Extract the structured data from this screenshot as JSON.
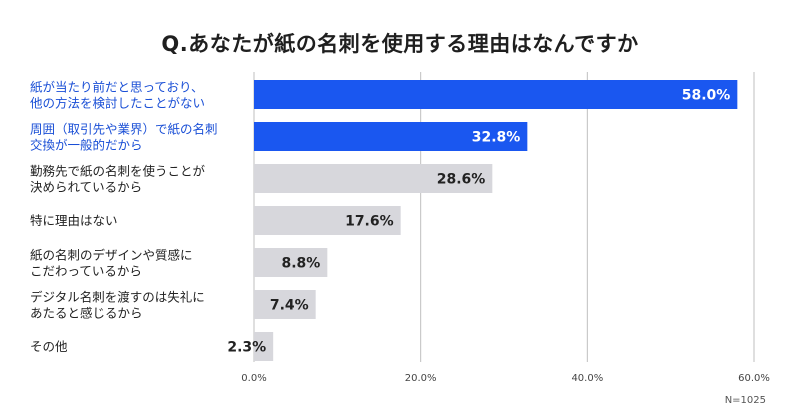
{
  "chart_data": {
    "type": "bar",
    "orientation": "horizontal",
    "title": "Q.あなたが紙の名刺を使用する理由はなんですか",
    "categories": [
      [
        "紙が当たり前だと思っており、",
        "他の方法を検討したことがない"
      ],
      [
        "周囲（取引先や業界）で紙の名刺",
        "交換が一般的だから"
      ],
      [
        "勤務先で紙の名刺を使うことが",
        "決められているから"
      ],
      [
        "特に理由はない"
      ],
      [
        "紙の名刺のデザインや質感に",
        "こだわっているから"
      ],
      [
        "デジタル名刺を渡すのは失礼に",
        "あたると感じるから"
      ],
      [
        "その他"
      ]
    ],
    "values": [
      58.0,
      32.8,
      28.6,
      17.6,
      8.8,
      7.4,
      2.3
    ],
    "value_labels": [
      "58.0%",
      "32.8%",
      "28.6%",
      "17.6%",
      "8.8%",
      "7.4%",
      "2.3%"
    ],
    "highlight": [
      true,
      true,
      false,
      false,
      false,
      false,
      false
    ],
    "xlim": [
      0,
      60
    ],
    "xticks": [
      0,
      20,
      40,
      60
    ],
    "xtick_labels": [
      "0.0%",
      "20.0%",
      "40.0%",
      "60.0%"
    ],
    "grid": true,
    "note": "N=1025",
    "colors": {
      "highlight": "#1a57f0",
      "normal": "#d7d7dc",
      "highlight_text": "#1a4fd6",
      "value_on_highlight": "#ffffff",
      "value_on_normal": "#222222",
      "grid": "#bfbfbf"
    }
  }
}
